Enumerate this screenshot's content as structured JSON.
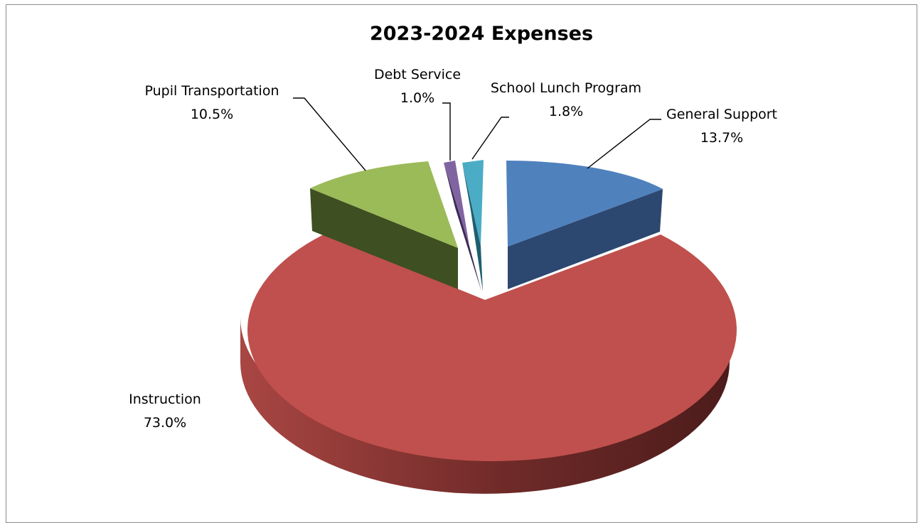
{
  "chart_data": {
    "type": "pie",
    "title": "2023-2024 Expenses",
    "slices": [
      {
        "label": "General Support",
        "pct_text": "13.7%",
        "value": 13.7,
        "color": "#4F81BD",
        "side_color": "#2C4770"
      },
      {
        "label": "Instruction",
        "pct_text": "73.0%",
        "value": 73.0,
        "color": "#C0504D",
        "side_color": "#7A2E2B"
      },
      {
        "label": "Pupil Transportation",
        "pct_text": "10.5%",
        "value": 10.5,
        "color": "#9BBB59",
        "side_color": "#3E4F21"
      },
      {
        "label": "Debt Service",
        "pct_text": "1.0%",
        "value": 1.0,
        "color": "#8064A2",
        "side_color": "#3B2A52"
      },
      {
        "label": "School Lunch Program",
        "pct_text": "1.8%",
        "value": 1.8,
        "color": "#4BACC6",
        "side_color": "#1F5E6E"
      }
    ],
    "style": "3d-exploded"
  }
}
